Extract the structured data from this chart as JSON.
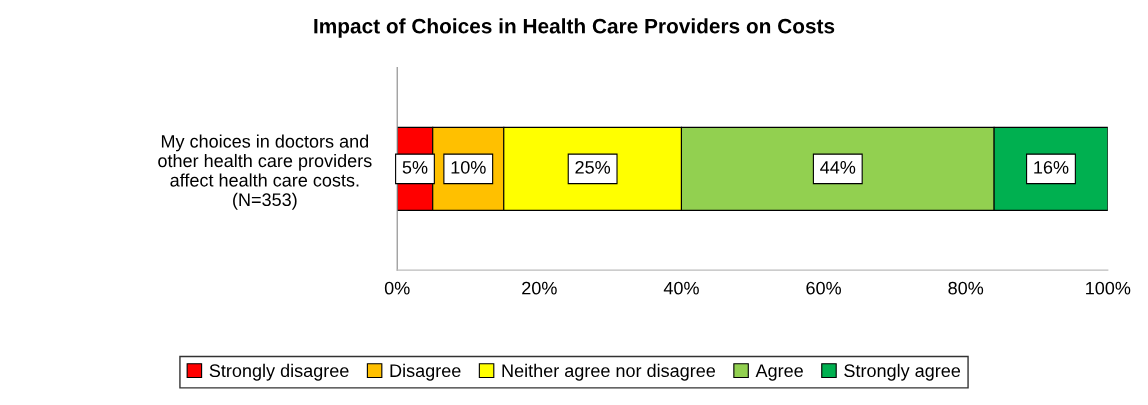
{
  "chart_data": {
    "type": "bar",
    "orientation": "horizontal",
    "stacked": true,
    "title": "Impact of Choices in Health Care Providers on Costs",
    "categories": [
      "My choices in doctors and\nother health care providers\naffect health care costs.\n(N=353)"
    ],
    "series": [
      {
        "name": "Strongly disagree",
        "color": "#ff0000",
        "values": [
          5
        ],
        "value_labels": [
          "5%"
        ]
      },
      {
        "name": "Disagree",
        "color": "#ffc000",
        "values": [
          10
        ],
        "value_labels": [
          "10%"
        ]
      },
      {
        "name": "Neither agree nor disagree",
        "color": "#ffff00",
        "values": [
          25
        ],
        "value_labels": [
          "25%"
        ]
      },
      {
        "name": "Agree",
        "color": "#92d050",
        "values": [
          44
        ],
        "value_labels": [
          "44%"
        ]
      },
      {
        "name": "Strongly agree",
        "color": "#00b050",
        "values": [
          16
        ],
        "value_labels": [
          "16%"
        ]
      }
    ],
    "xlim": [
      0,
      100
    ],
    "xticks": [
      {
        "value": 0,
        "label": "0%"
      },
      {
        "value": 20,
        "label": "20%"
      },
      {
        "value": 40,
        "label": "40%"
      },
      {
        "value": 60,
        "label": "60%"
      },
      {
        "value": 80,
        "label": "80%"
      },
      {
        "value": 100,
        "label": "100%"
      }
    ],
    "grid": false,
    "legend": "bottom"
  }
}
